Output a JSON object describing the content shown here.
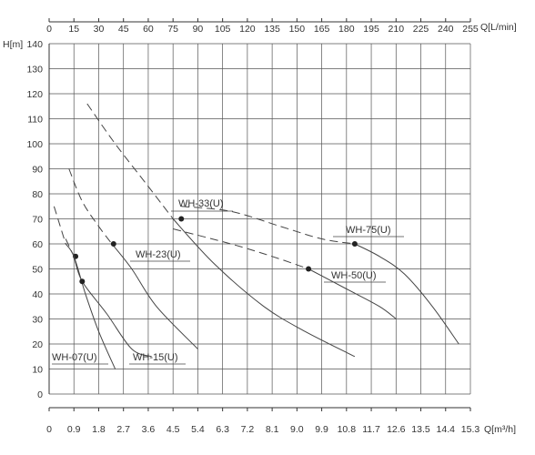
{
  "chart_data": {
    "type": "line",
    "ylabel": "H[m]",
    "top_xlabel": "Q[L/min]",
    "bottom_xlabel": "Q[m³/h]",
    "ylim": [
      0,
      140
    ],
    "xlim_L_min": [
      0,
      255
    ],
    "y_ticks": [
      "0",
      "10",
      "20",
      "30",
      "40",
      "50",
      "60",
      "70",
      "80",
      "90",
      "100",
      "110",
      "120",
      "130",
      "140"
    ],
    "top_ticks": [
      "0",
      "15",
      "30",
      "45",
      "60",
      "75",
      "90",
      "105",
      "120",
      "135",
      "150",
      "165",
      "180",
      "195",
      "210",
      "225",
      "240",
      "255"
    ],
    "bottom_ticks": [
      "0",
      "0.9",
      "1.8",
      "2.7",
      "3.6",
      "4.5",
      "5.4",
      "6.3",
      "7.2",
      "8.1",
      "9.0",
      "9.9",
      "10.8",
      "11.7",
      "12.6",
      "13.5",
      "14.4",
      "15.3"
    ],
    "grid": true,
    "series": [
      {
        "name": "WH-07(U)",
        "x": [
          3,
          10,
          15,
          22,
          30,
          40
        ],
        "y": [
          75,
          60,
          55,
          40,
          25,
          10
        ],
        "dashed_x_max": 10,
        "point": [
          16,
          55
        ]
      },
      {
        "name": "WH-15(U)",
        "x": [
          10,
          15,
          20,
          35,
          50,
          62
        ],
        "y": [
          62,
          55,
          45,
          32,
          18,
          15
        ],
        "dashed_x_max": 14,
        "point": [
          20,
          45
        ]
      },
      {
        "name": "WH-23(U)",
        "x": [
          12,
          20,
          30,
          38,
          50,
          65,
          90
        ],
        "y": [
          90,
          77,
          67,
          60,
          50,
          35,
          18
        ],
        "dashed_x_max": 38,
        "point": [
          39,
          60
        ]
      },
      {
        "name": "WH-33(U)",
        "x": [
          23,
          40,
          60,
          75,
          100,
          130,
          155,
          185
        ],
        "y": [
          116,
          100,
          83,
          70,
          52,
          35,
          25,
          15
        ],
        "dashed_x_max": 75,
        "point": [
          80,
          70
        ]
      },
      {
        "name": "WH-50(U)",
        "x": [
          75,
          110,
          135,
          157,
          180,
          200,
          210
        ],
        "y": [
          66,
          60,
          55,
          50,
          42,
          35,
          30
        ],
        "dashed_x_max": 157,
        "point": [
          157,
          50
        ]
      },
      {
        "name": "WH-75(U)",
        "x": [
          80,
          110,
          140,
          165,
          185,
          200,
          215,
          232,
          248
        ],
        "y": [
          75,
          73,
          67,
          62,
          60,
          55,
          48,
          35,
          20
        ],
        "dashed_x_max": 185,
        "point": [
          185,
          60
        ]
      }
    ]
  }
}
